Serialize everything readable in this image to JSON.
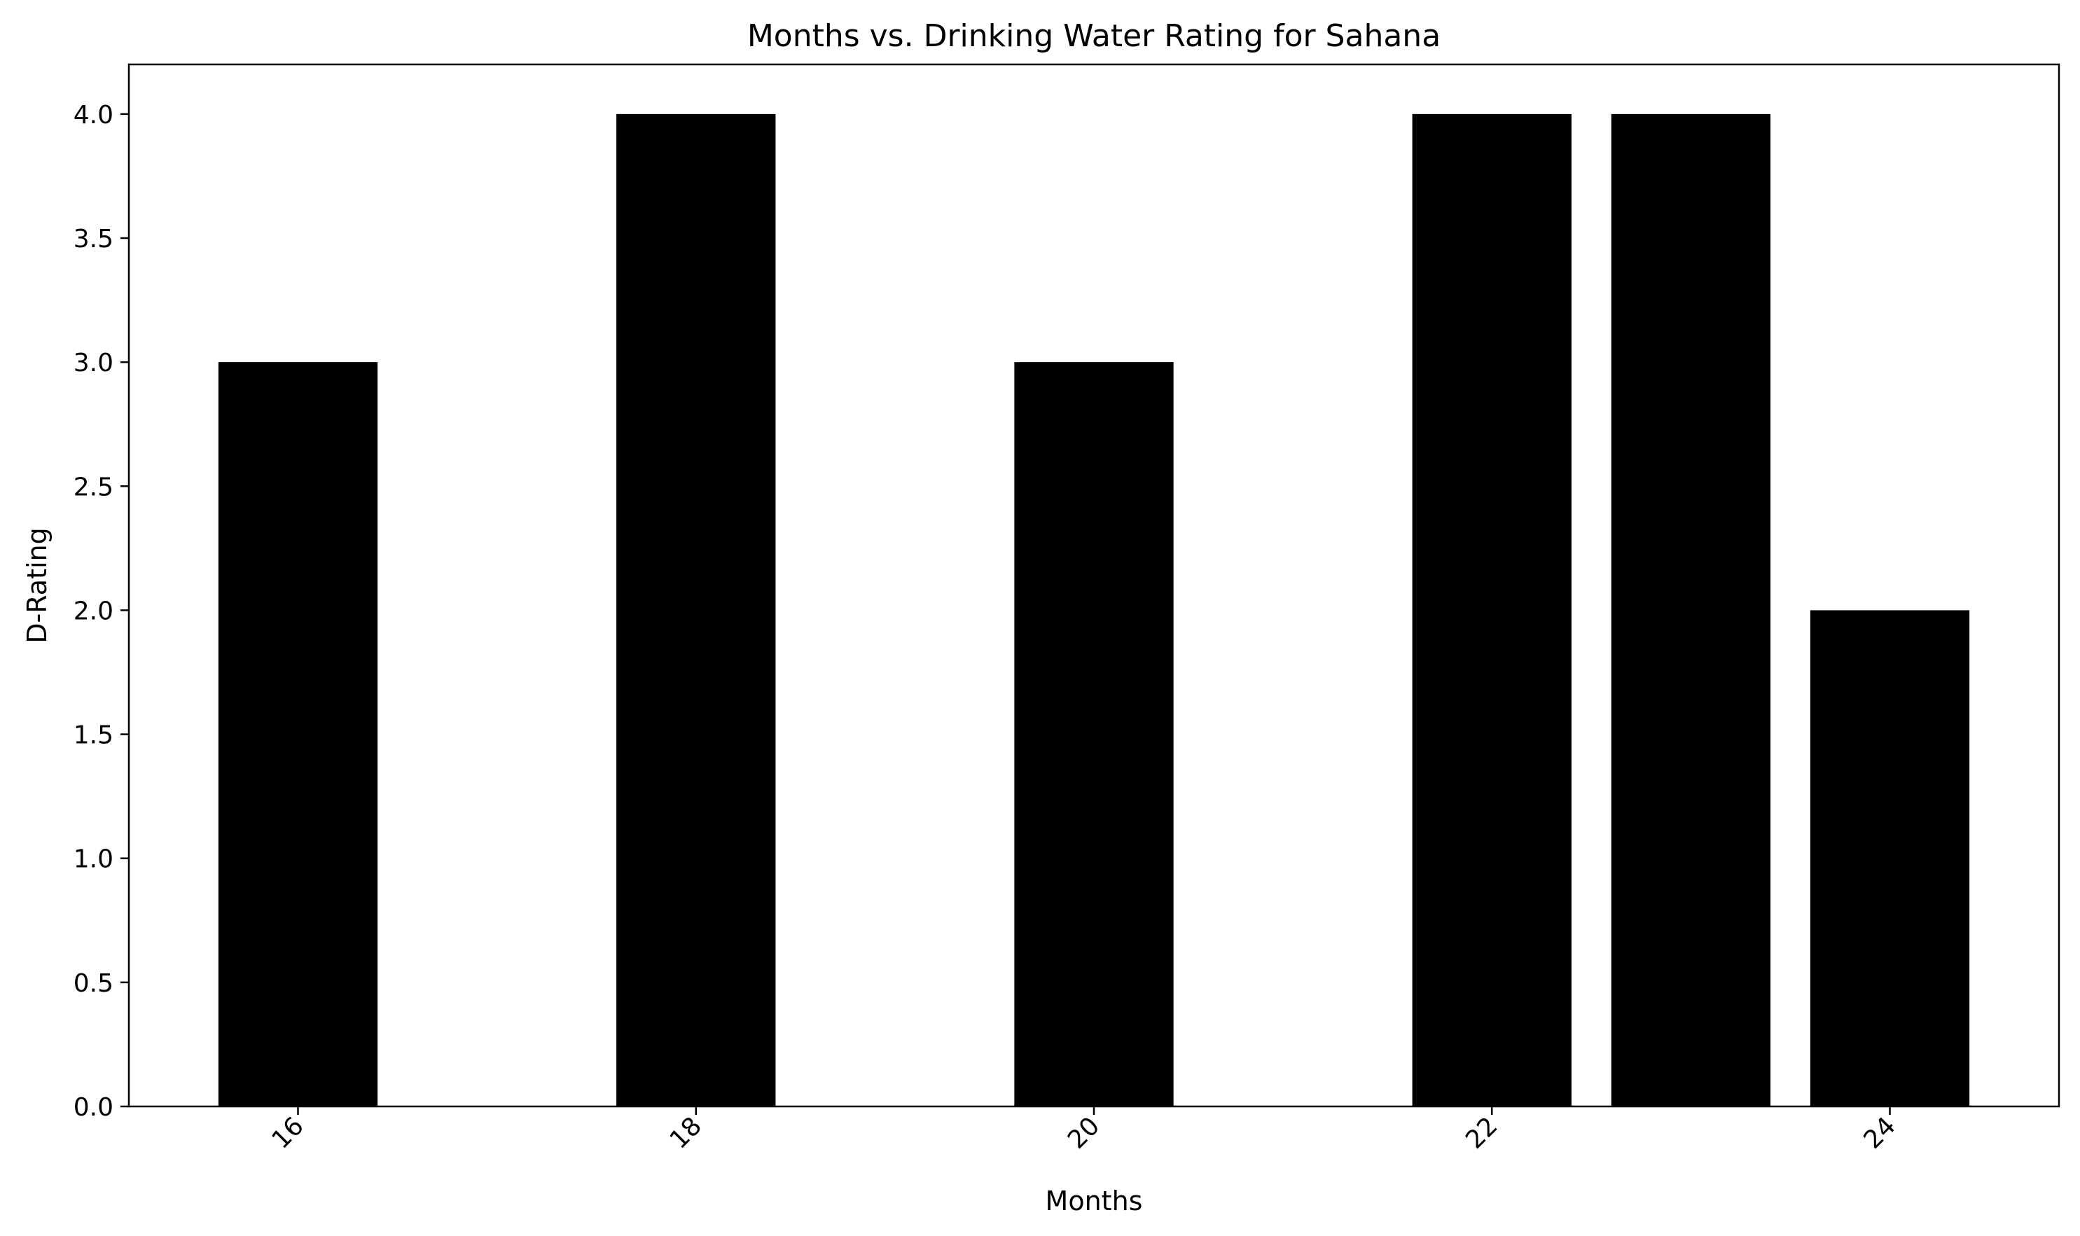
{
  "chart_data": {
    "type": "bar",
    "title": "Months vs. Drinking Water Rating for Sahana",
    "xlabel": "Months",
    "ylabel": "D-Rating",
    "x": [
      16,
      18,
      20,
      22,
      23,
      24
    ],
    "values": [
      3,
      4,
      3,
      4,
      4,
      2
    ],
    "xlim": [
      15.15,
      24.85
    ],
    "ylim": [
      0,
      4.2
    ],
    "xticks": [
      16,
      18,
      20,
      22,
      24
    ],
    "xtick_labels": [
      "16",
      "18",
      "20",
      "22",
      "24"
    ],
    "yticks": [
      0,
      0.5,
      1,
      1.5,
      2,
      2.5,
      3,
      3.5,
      4
    ],
    "ytick_labels": [
      "0.0",
      "0.5",
      "1.0",
      "1.5",
      "2.0",
      "2.5",
      "3.0",
      "3.5",
      "4.0"
    ],
    "bar_width": 0.8,
    "xtick_rotation": 45,
    "bar_color": "#000000",
    "grid": false,
    "legend": false
  }
}
